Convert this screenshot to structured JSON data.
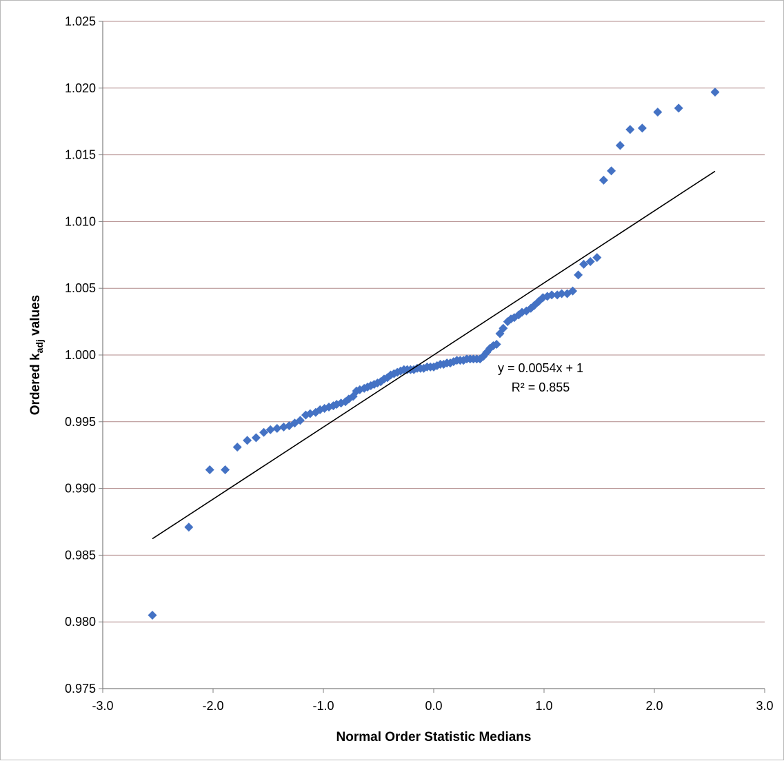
{
  "chart_data": {
    "type": "scatter",
    "title": "",
    "xlabel": "Normal Order Statistic Medians",
    "ylabel": {
      "prefix": "Ordered k",
      "subscript": "adj",
      "suffix": " values"
    },
    "xlim": [
      -3.0,
      3.0
    ],
    "ylim": [
      0.975,
      1.025
    ],
    "x_ticks": [
      "-3.0",
      "-2.0",
      "-1.0",
      "0.0",
      "1.0",
      "2.0",
      "3.0"
    ],
    "y_ticks": [
      "0.975",
      "0.980",
      "0.985",
      "0.990",
      "0.995",
      "1.000",
      "1.005",
      "1.010",
      "1.015",
      "1.020",
      "1.025"
    ],
    "grid": "horizontal",
    "marker_color": "#4472C4",
    "trendline": {
      "slope": 0.0054,
      "intercept": 1,
      "x_start": -2.55,
      "x_end": 2.55,
      "color": "#000000"
    },
    "annotations": {
      "equation": "y = 0.0054x + 1",
      "r_squared": "R² = 0.855"
    },
    "points": [
      [
        -2.55,
        0.9805
      ],
      [
        -2.22,
        0.9871
      ],
      [
        -2.03,
        0.9914
      ],
      [
        -1.89,
        0.9914
      ],
      [
        -1.78,
        0.9931
      ],
      [
        -1.69,
        0.9936
      ],
      [
        -1.61,
        0.9938
      ],
      [
        -1.54,
        0.9942
      ],
      [
        -1.48,
        0.9944
      ],
      [
        -1.42,
        0.9945
      ],
      [
        -1.36,
        0.9946
      ],
      [
        -1.31,
        0.9947
      ],
      [
        -1.26,
        0.9949
      ],
      [
        -1.21,
        0.9951
      ],
      [
        -1.16,
        0.9955
      ],
      [
        -1.12,
        0.9956
      ],
      [
        -1.07,
        0.9957
      ],
      [
        -1.03,
        0.9959
      ],
      [
        -0.99,
        0.996
      ],
      [
        -0.95,
        0.9961
      ],
      [
        -0.91,
        0.9962
      ],
      [
        -0.88,
        0.9963
      ],
      [
        -0.84,
        0.9964
      ],
      [
        -0.8,
        0.9965
      ],
      [
        -0.77,
        0.9967
      ],
      [
        -0.73,
        0.9969
      ],
      [
        -0.7,
        0.9973
      ],
      [
        -0.67,
        0.9974
      ],
      [
        -0.63,
        0.9975
      ],
      [
        -0.6,
        0.9976
      ],
      [
        -0.57,
        0.9977
      ],
      [
        -0.54,
        0.9978
      ],
      [
        -0.51,
        0.9979
      ],
      [
        -0.48,
        0.998
      ],
      [
        -0.45,
        0.9982
      ],
      [
        -0.42,
        0.9983
      ],
      [
        -0.39,
        0.9985
      ],
      [
        -0.36,
        0.9986
      ],
      [
        -0.33,
        0.9987
      ],
      [
        -0.3,
        0.9988
      ],
      [
        -0.27,
        0.9989
      ],
      [
        -0.24,
        0.9989
      ],
      [
        -0.21,
        0.9989
      ],
      [
        -0.18,
        0.9989
      ],
      [
        -0.15,
        0.999
      ],
      [
        -0.12,
        0.999
      ],
      [
        -0.09,
        0.999
      ],
      [
        -0.06,
        0.9991
      ],
      [
        -0.03,
        0.9991
      ],
      [
        0.0,
        0.9991
      ],
      [
        0.03,
        0.9992
      ],
      [
        0.06,
        0.9993
      ],
      [
        0.09,
        0.9993
      ],
      [
        0.12,
        0.9994
      ],
      [
        0.15,
        0.9994
      ],
      [
        0.18,
        0.9995
      ],
      [
        0.21,
        0.9996
      ],
      [
        0.24,
        0.9996
      ],
      [
        0.27,
        0.9996
      ],
      [
        0.3,
        0.9997
      ],
      [
        0.33,
        0.9997
      ],
      [
        0.36,
        0.9997
      ],
      [
        0.39,
        0.9997
      ],
      [
        0.42,
        0.9997
      ],
      [
        0.45,
        0.9999
      ],
      [
        0.48,
        1.0002
      ],
      [
        0.51,
        1.0005
      ],
      [
        0.54,
        1.0007
      ],
      [
        0.57,
        1.0008
      ],
      [
        0.6,
        1.0016
      ],
      [
        0.63,
        1.002
      ],
      [
        0.67,
        1.0025
      ],
      [
        0.7,
        1.0027
      ],
      [
        0.73,
        1.0028
      ],
      [
        0.77,
        1.003
      ],
      [
        0.8,
        1.0032
      ],
      [
        0.84,
        1.0033
      ],
      [
        0.88,
        1.0035
      ],
      [
        0.91,
        1.0037
      ],
      [
        0.95,
        1.004
      ],
      [
        0.99,
        1.0043
      ],
      [
        1.03,
        1.0044
      ],
      [
        1.07,
        1.0045
      ],
      [
        1.12,
        1.0045
      ],
      [
        1.16,
        1.0046
      ],
      [
        1.21,
        1.0046
      ],
      [
        1.26,
        1.0048
      ],
      [
        1.31,
        1.006
      ],
      [
        1.36,
        1.0068
      ],
      [
        1.42,
        1.007
      ],
      [
        1.48,
        1.0073
      ],
      [
        1.54,
        1.0131
      ],
      [
        1.61,
        1.0138
      ],
      [
        1.69,
        1.0157
      ],
      [
        1.78,
        1.0169
      ],
      [
        1.89,
        1.017
      ],
      [
        2.03,
        1.0182
      ],
      [
        2.22,
        1.0185
      ],
      [
        2.55,
        1.0197
      ]
    ]
  }
}
